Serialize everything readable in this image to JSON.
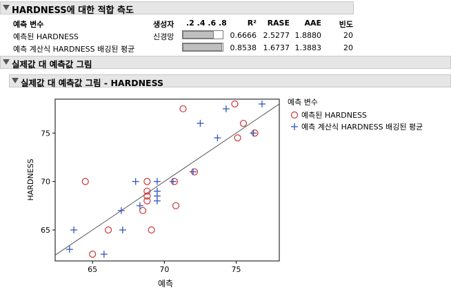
{
  "section1": {
    "title": "HARDNESS에 대한 적합 측도",
    "columns": {
      "predictor": "예측 변수",
      "creator": "생성자",
      "scale": ".2 .4 .6 .8",
      "r2": "R²",
      "rase": "RASE",
      "aae": "AAE",
      "freq": "빈도"
    },
    "rows": [
      {
        "predictor": "예측된 HARDNESS",
        "creator": "신경망",
        "r2": "0.6666",
        "rase": "2.5277",
        "aae": "1.8880",
        "freq": "20",
        "bar": 0.6666
      },
      {
        "predictor": "예측 계산식 HARDNESS 배깅된 평균",
        "creator": "",
        "r2": "0.8538",
        "rase": "1.6737",
        "aae": "1.3883",
        "freq": "20",
        "bar": 0.8538
      }
    ]
  },
  "section2": {
    "title": "실제값 대 예측값 그림"
  },
  "section3": {
    "title": "실제값 대 예측값 그림 - HARDNESS"
  },
  "chart_data": {
    "type": "scatter",
    "xlabel": "예측",
    "ylabel": "HARDNESS",
    "xlim": [
      62.4,
      78.0
    ],
    "ylim": [
      61.8,
      78.5
    ],
    "xticks": [
      "65",
      "70",
      "75"
    ],
    "yticks": [
      "65",
      "70",
      "75"
    ],
    "xtick_values": [
      65,
      70,
      75
    ],
    "ytick_values": [
      65,
      70,
      75
    ],
    "legend_title": "예측 변수",
    "series": [
      {
        "name": "예측된 HARDNESS",
        "marker": "circle",
        "color": "#cc3333",
        "points": [
          [
            71.3,
            77.5
          ],
          [
            74.9,
            78.0
          ],
          [
            75.5,
            76.0
          ],
          [
            76.3,
            75.0
          ],
          [
            75.1,
            74.5
          ],
          [
            72.1,
            71.0
          ],
          [
            70.7,
            70.0
          ],
          [
            64.5,
            70.0
          ],
          [
            68.8,
            70.0
          ],
          [
            68.8,
            69.0
          ],
          [
            68.8,
            68.5
          ],
          [
            68.8,
            68.0
          ],
          [
            68.5,
            67.0
          ],
          [
            70.8,
            67.5
          ],
          [
            66.1,
            65.0
          ],
          [
            69.1,
            65.0
          ],
          [
            65.0,
            62.5
          ]
        ]
      },
      {
        "name": "예측 계산식 HARDNESS 배깅된 평균",
        "marker": "plus",
        "color": "#3355bb",
        "points": [
          [
            76.8,
            78.0
          ],
          [
            74.3,
            77.5
          ],
          [
            72.5,
            76.0
          ],
          [
            76.2,
            75.0
          ],
          [
            73.7,
            74.5
          ],
          [
            72.0,
            71.0
          ],
          [
            68.0,
            70.0
          ],
          [
            69.5,
            70.0
          ],
          [
            70.6,
            70.0
          ],
          [
            69.5,
            69.0
          ],
          [
            69.5,
            68.5
          ],
          [
            69.5,
            68.0
          ],
          [
            68.3,
            67.5
          ],
          [
            67.0,
            67.0
          ],
          [
            63.7,
            65.0
          ],
          [
            67.1,
            65.0
          ],
          [
            63.4,
            63.0
          ],
          [
            65.8,
            62.5
          ]
        ]
      }
    ]
  }
}
